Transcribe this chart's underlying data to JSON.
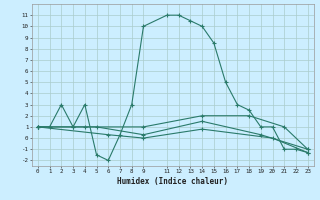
{
  "xlabel": "Humidex (Indice chaleur)",
  "background_color": "#cceeff",
  "grid_color": "#aacccc",
  "line_color": "#2a7a6a",
  "xlim": [
    -0.5,
    23.5
  ],
  "ylim": [
    -2.5,
    12
  ],
  "xticks": [
    0,
    1,
    2,
    3,
    4,
    5,
    6,
    7,
    8,
    9,
    11,
    12,
    13,
    14,
    15,
    16,
    17,
    18,
    19,
    20,
    21,
    22,
    23
  ],
  "yticks": [
    -2,
    -1,
    0,
    1,
    2,
    3,
    4,
    5,
    6,
    7,
    8,
    9,
    10,
    11
  ],
  "line1_x": [
    0,
    1,
    2,
    3,
    4,
    5,
    6,
    7,
    8,
    9,
    11,
    12,
    13,
    14,
    15,
    16,
    17,
    18,
    19,
    20,
    21,
    22,
    23
  ],
  "line1_y": [
    1,
    1,
    3,
    1,
    3,
    -1.5,
    -2,
    0.3,
    3,
    10,
    11,
    11,
    10.5,
    10,
    8.5,
    5,
    3,
    2.5,
    1,
    1,
    -1,
    -1,
    -1.3
  ],
  "line2_x": [
    0,
    3,
    4,
    9,
    14,
    18,
    21,
    23
  ],
  "line2_y": [
    1,
    1,
    1,
    1,
    2,
    2,
    1,
    -1
  ],
  "line3_x": [
    0,
    5,
    9,
    14,
    19,
    23
  ],
  "line3_y": [
    1,
    1,
    0.3,
    1.5,
    0.3,
    -1
  ],
  "line4_x": [
    0,
    6,
    9,
    14,
    20,
    23
  ],
  "line4_y": [
    1,
    0.3,
    0,
    0.8,
    0,
    -1.3
  ]
}
